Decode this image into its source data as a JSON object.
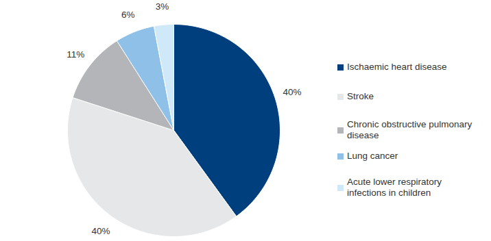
{
  "chart_data": {
    "type": "pie",
    "categories": [
      "Ischaemic heart disease",
      "Stroke",
      "Chronic obstructive pulmonary disease",
      "Lung cancer",
      "Acute lower respiratory infections in children"
    ],
    "values": [
      40,
      40,
      11,
      6,
      3
    ],
    "value_labels": [
      "40%",
      "40%",
      "11%",
      "6%",
      "3%"
    ],
    "colors": [
      "#003f7d",
      "#e6e7e9",
      "#b4b5b8",
      "#8fc0e8",
      "#cfe9f9"
    ],
    "data_labels": true,
    "legend": "right"
  }
}
